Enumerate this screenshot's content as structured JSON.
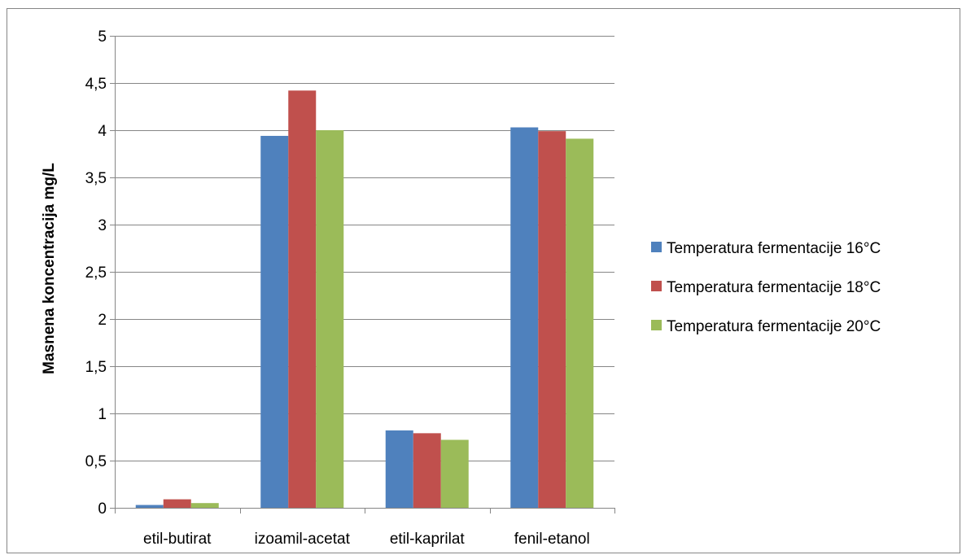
{
  "chart_data": {
    "type": "bar",
    "title": "",
    "xlabel": "",
    "ylabel": "Masnena koncentracija mg/L",
    "ylim": [
      0,
      5
    ],
    "yticks": [
      "0",
      "0,5",
      "1",
      "1,5",
      "2",
      "2,5",
      "3",
      "3,5",
      "4",
      "4,5",
      "5"
    ],
    "ytick_values": [
      0,
      0.5,
      1,
      1.5,
      2,
      2.5,
      3,
      3.5,
      4,
      4.5,
      5
    ],
    "grid": true,
    "legend_position": "right",
    "categories": [
      "etil-butirat",
      "izoamil-acetat",
      "etil-kaprilat",
      "fenil-etanol"
    ],
    "series": [
      {
        "name": "Temperatura fermentacije 16°C",
        "color": "#4F81BD",
        "values": [
          0.03,
          3.94,
          0.82,
          4.03
        ]
      },
      {
        "name": "Temperatura fermentacije 18°C",
        "color": "#C0504D",
        "values": [
          0.09,
          4.42,
          0.79,
          3.99
        ]
      },
      {
        "name": "Temperatura fermentacije 20°C",
        "color": "#9BBB59",
        "values": [
          0.05,
          4.0,
          0.72,
          3.91
        ]
      }
    ]
  }
}
